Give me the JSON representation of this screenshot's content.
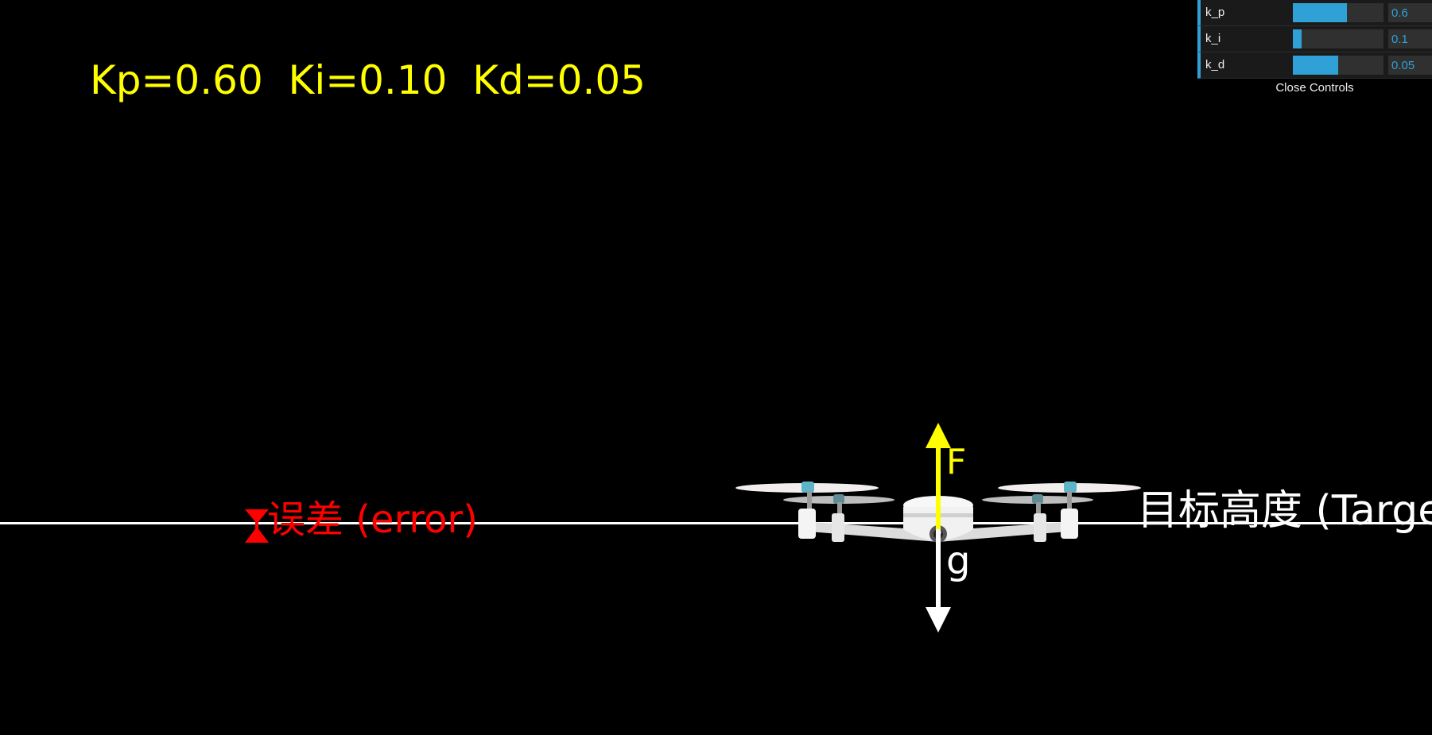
{
  "gains_text": "Kp=0.60  Ki=0.10  Kd=0.05",
  "target": {
    "label": "目标高度 (Target"
  },
  "error": {
    "label": "误差 (error)"
  },
  "forces": {
    "thrust_label": "F",
    "gravity_label": "g"
  },
  "colors": {
    "background": "#000000",
    "gains_text": "#ffff00",
    "target_line": "#ffffff",
    "error": "#ff0000",
    "thrust_arrow": "#ffff00",
    "gravity_arrow": "#ffffff",
    "gui_accent": "#2fa1d6"
  },
  "gui": {
    "controls": [
      {
        "label": "k_p",
        "value": "0.6",
        "fill": 0.6
      },
      {
        "label": "k_i",
        "value": "0.1",
        "fill": 0.1
      },
      {
        "label": "k_d",
        "value": "0.05",
        "fill": 0.5
      }
    ],
    "close_label": "Close Controls"
  }
}
